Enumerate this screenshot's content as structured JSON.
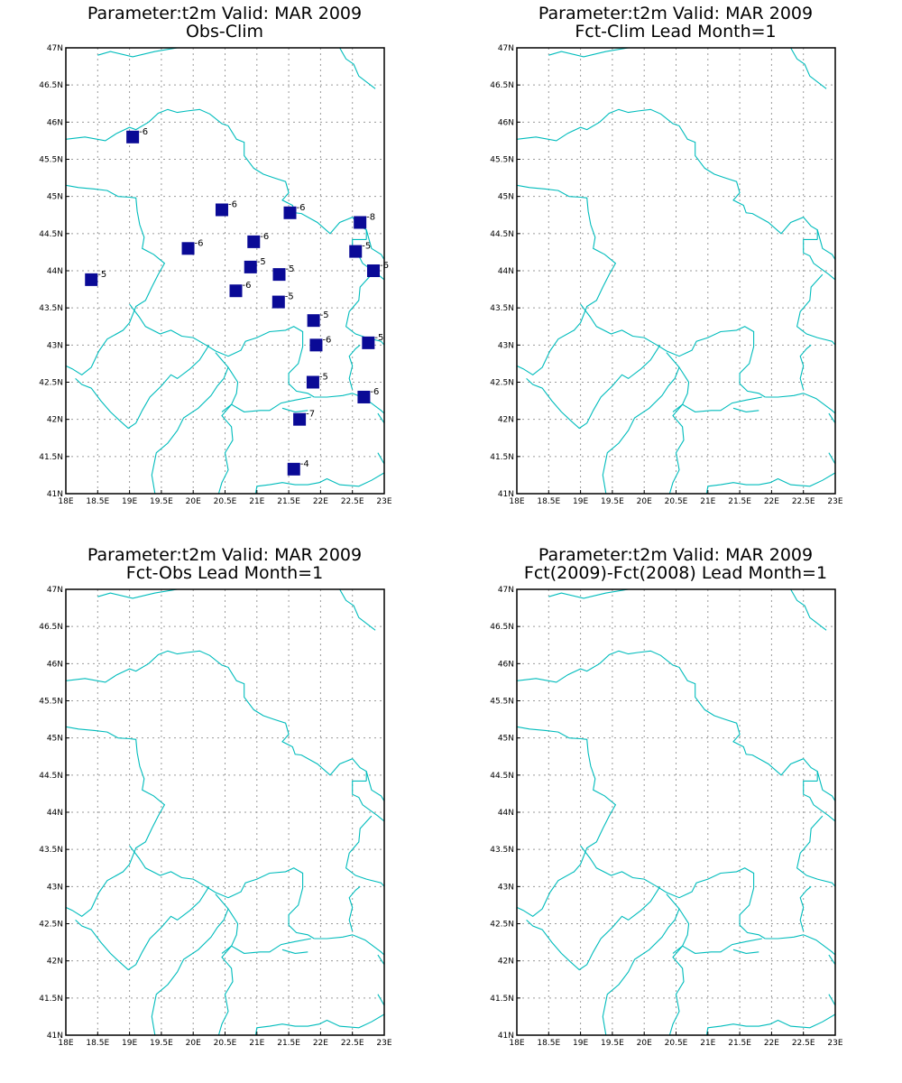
{
  "colors": {
    "border": "#00bcbc",
    "marker": "#0a0a96",
    "grid": "#9a9a9a",
    "frame": "#000000"
  },
  "map": {
    "lon_range": [
      18,
      23
    ],
    "lat_range": [
      41,
      47
    ],
    "lon_ticks": [
      "18E",
      "18.5E",
      "19E",
      "19.5E",
      "20E",
      "20.5E",
      "21E",
      "21.5E",
      "22E",
      "22.5E",
      "23E"
    ],
    "lat_ticks": [
      "41N",
      "41.5N",
      "42N",
      "42.5N",
      "43N",
      "43.5N",
      "44N",
      "44.5N",
      "45N",
      "45.5N",
      "46N",
      "46.5N",
      "47N"
    ]
  },
  "panels": [
    {
      "id": "obs-clim",
      "title_line1": "Parameter:t2m Valid: MAR 2009",
      "title_line2": "Obs-Clim",
      "stations": [
        {
          "lon": 19.05,
          "lat": 45.8,
          "label": "-6"
        },
        {
          "lon": 20.45,
          "lat": 44.82,
          "label": "-6"
        },
        {
          "lon": 21.52,
          "lat": 44.78,
          "label": "-6"
        },
        {
          "lon": 22.62,
          "lat": 44.65,
          "label": "-8"
        },
        {
          "lon": 20.95,
          "lat": 44.39,
          "label": "-6"
        },
        {
          "lon": 19.92,
          "lat": 44.3,
          "label": "-6"
        },
        {
          "lon": 22.55,
          "lat": 44.26,
          "label": "-5"
        },
        {
          "lon": 20.9,
          "lat": 44.05,
          "label": "-5"
        },
        {
          "lon": 21.35,
          "lat": 43.95,
          "label": "-5"
        },
        {
          "lon": 22.83,
          "lat": 44.0,
          "label": "-6"
        },
        {
          "lon": 18.4,
          "lat": 43.88,
          "label": "-5"
        },
        {
          "lon": 20.67,
          "lat": 43.73,
          "label": "-6"
        },
        {
          "lon": 21.34,
          "lat": 43.58,
          "label": "-5"
        },
        {
          "lon": 21.89,
          "lat": 43.33,
          "label": "-5"
        },
        {
          "lon": 22.75,
          "lat": 43.03,
          "label": "-5"
        },
        {
          "lon": 21.93,
          "lat": 43.0,
          "label": "-6"
        },
        {
          "lon": 21.88,
          "lat": 42.5,
          "label": "-5"
        },
        {
          "lon": 22.68,
          "lat": 42.3,
          "label": "-6"
        },
        {
          "lon": 21.67,
          "lat": 42.0,
          "label": "-7"
        },
        {
          "lon": 21.58,
          "lat": 41.33,
          "label": "-4"
        }
      ]
    },
    {
      "id": "fct-clim",
      "title_line1": "Parameter:t2m Valid: MAR 2009",
      "title_line2": "Fct-Clim Lead Month=1",
      "stations": []
    },
    {
      "id": "fct-obs",
      "title_line1": "Parameter:t2m Valid: MAR 2009",
      "title_line2": "Fct-Obs Lead Month=1",
      "stations": []
    },
    {
      "id": "fct-diff",
      "title_line1": "Parameter:t2m Valid: MAR 2009",
      "title_line2": "Fct(2009)-Fct(2008) Lead Month=1",
      "stations": []
    }
  ]
}
